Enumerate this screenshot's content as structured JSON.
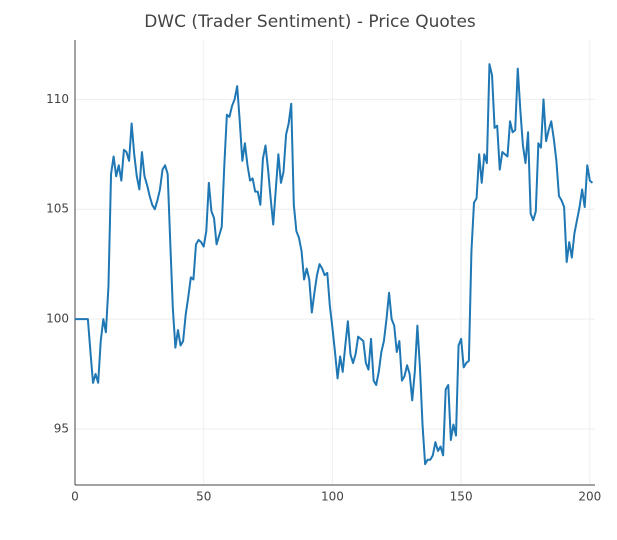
{
  "chart_data": {
    "type": "line",
    "title": "DWC (Trader Sentiment) - Price Quotes",
    "x": [
      0,
      1,
      2,
      3,
      4,
      5,
      6,
      7,
      8,
      9,
      10,
      11,
      12,
      13,
      14,
      15,
      16,
      17,
      18,
      19,
      20,
      21,
      22,
      23,
      24,
      25,
      26,
      27,
      28,
      29,
      30,
      31,
      32,
      33,
      34,
      35,
      36,
      37,
      38,
      39,
      40,
      41,
      42,
      43,
      44,
      45,
      46,
      47,
      48,
      49,
      50,
      51,
      52,
      53,
      54,
      55,
      56,
      57,
      58,
      59,
      60,
      61,
      62,
      63,
      64,
      65,
      66,
      67,
      68,
      69,
      70,
      71,
      72,
      73,
      74,
      75,
      76,
      77,
      78,
      79,
      80,
      81,
      82,
      83,
      84,
      85,
      86,
      87,
      88,
      89,
      90,
      91,
      92,
      93,
      94,
      95,
      96,
      97,
      98,
      99,
      100,
      101,
      102,
      103,
      104,
      105,
      106,
      107,
      108,
      109,
      110,
      111,
      112,
      113,
      114,
      115,
      116,
      117,
      118,
      119,
      120,
      121,
      122,
      123,
      124,
      125,
      126,
      127,
      128,
      129,
      130,
      131,
      132,
      133,
      134,
      135,
      136,
      137,
      138,
      139,
      140,
      141,
      142,
      143,
      144,
      145,
      146,
      147,
      148,
      149,
      150,
      151,
      152,
      153,
      154,
      155,
      156,
      157,
      158,
      159,
      160,
      161,
      162,
      163,
      164,
      165,
      166,
      167,
      168,
      169,
      170,
      171,
      172,
      173,
      174,
      175,
      176,
      177,
      178,
      179,
      180,
      181,
      182,
      183,
      184,
      185,
      186,
      187,
      188,
      189,
      190,
      191,
      192,
      193,
      194,
      195,
      196,
      197,
      198,
      199,
      200,
      201
    ],
    "series": [
      {
        "color": "#1f77b4",
        "values": [
          100,
          100,
          100,
          100,
          100,
          100,
          98.5,
          97.1,
          97.5,
          97.1,
          99,
          100,
          99.4,
          101.5,
          106.6,
          107.4,
          106.5,
          107,
          106.3,
          107.7,
          107.6,
          107.2,
          108.9,
          107.5,
          106.5,
          105.9,
          107.6,
          106.5,
          106.1,
          105.6,
          105.2,
          105,
          105.4,
          105.9,
          106.8,
          107,
          106.6,
          103.5,
          100.5,
          98.7,
          99.5,
          98.8,
          99,
          100.2,
          101,
          101.9,
          101.8,
          103.4,
          103.6,
          103.5,
          103.3,
          104,
          106.2,
          104.9,
          104.6,
          103.4,
          103.8,
          104.2,
          107,
          109.3,
          109.2,
          109.7,
          110,
          110.6,
          109,
          107.2,
          108,
          107,
          106.3,
          106.4,
          105.8,
          105.8,
          105.2,
          107.3,
          107.9,
          106.8,
          105.5,
          104.3,
          105.9,
          107.5,
          106.2,
          106.7,
          108.4,
          108.9,
          109.8,
          105.2,
          104,
          103.7,
          103.1,
          101.8,
          102.3,
          101.8,
          100.3,
          101.2,
          102,
          102.5,
          102.3,
          102,
          102.1,
          100.6,
          99.6,
          98.5,
          97.3,
          98.3,
          97.6,
          98.8,
          99.9,
          98.4,
          98,
          98.4,
          99.2,
          99.1,
          99,
          98,
          97.7,
          99.1,
          97.2,
          97,
          97.6,
          98.5,
          99,
          100,
          101.2,
          100,
          99.7,
          98.5,
          99,
          97.2,
          97.4,
          97.9,
          97.5,
          96.3,
          97.6,
          99.7,
          97.8,
          95.2,
          93.4,
          93.6,
          93.6,
          93.8,
          94.4,
          94,
          94.2,
          93.8,
          96.8,
          97,
          94.5,
          95.2,
          94.7,
          98.8,
          99.1,
          97.8,
          98,
          98.1,
          103.1,
          105.3,
          105.5,
          107.5,
          106.2,
          107.5,
          107.1,
          111.6,
          111.1,
          108.7,
          108.8,
          106.8,
          107.6,
          107.5,
          107.4,
          109,
          108.5,
          108.6,
          111.4,
          109.5,
          107.9,
          107.1,
          108.5,
          104.8,
          104.5,
          104.9,
          108,
          107.8,
          110,
          108.1,
          108.6,
          109,
          108.2,
          107.2,
          105.6,
          105.4,
          105.1,
          102.6,
          103.5,
          102.8,
          103.9,
          104.5,
          105.1,
          105.9,
          105.1,
          107,
          106.3,
          106.2
        ]
      }
    ],
    "xlim": [
      0,
      202
    ],
    "xticks": [
      0,
      50,
      100,
      150,
      200
    ],
    "ylim": [
      92.45,
      112.7
    ],
    "yticks": [
      95,
      100,
      105,
      110
    ],
    "grid": true
  }
}
